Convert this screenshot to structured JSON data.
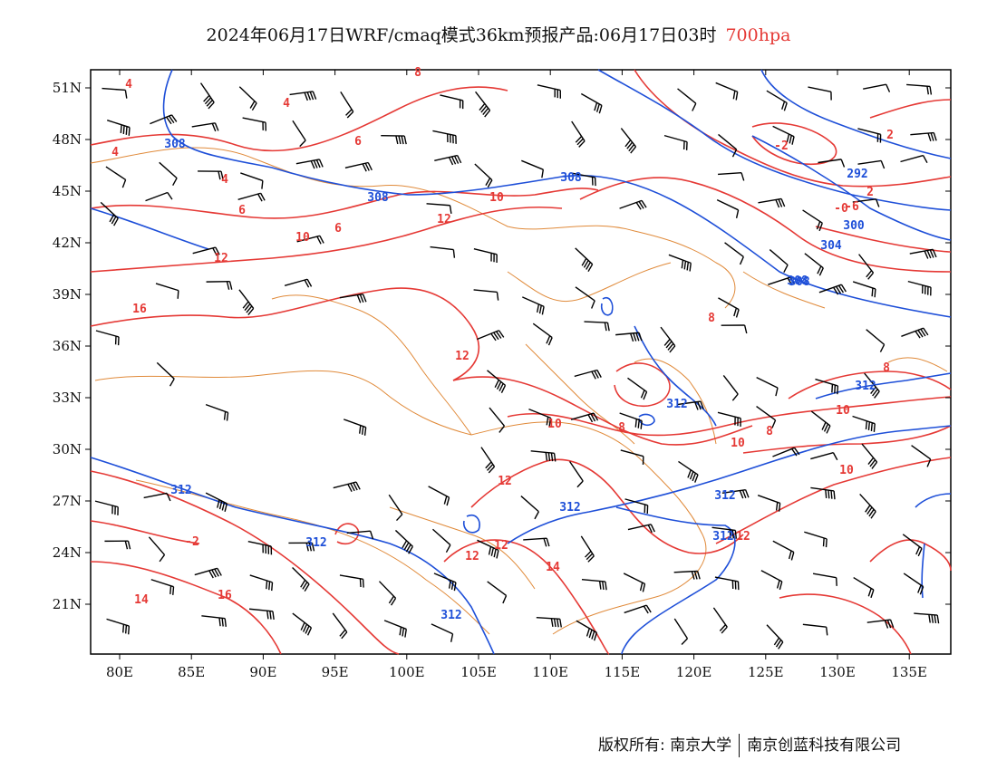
{
  "title": {
    "text": "2024年06月17日WRF/cmaq模式36km预报产品:06月17日03时",
    "level": "700hpa"
  },
  "axes": {
    "lat_labels": [
      "51N",
      "48N",
      "45N",
      "42N",
      "39N",
      "36N",
      "33N",
      "30N",
      "27N",
      "24N",
      "21N"
    ],
    "lon_labels": [
      "80E",
      "85E",
      "90E",
      "95E",
      "100E",
      "105E",
      "110E",
      "115E",
      "120E",
      "125E",
      "130E",
      "135E"
    ]
  },
  "contours": {
    "temperature_labels": [
      "4",
      "4",
      "4",
      "4",
      "6",
      "6",
      "6",
      "8",
      "8",
      "8",
      "8",
      "10",
      "10",
      "10",
      "10",
      "10",
      "12",
      "12",
      "12",
      "12",
      "12",
      "12",
      "12",
      "14",
      "14",
      "16",
      "16",
      "-2",
      "2",
      "-2",
      "-0",
      "2",
      "-6",
      "8",
      "10"
    ],
    "height_labels": [
      "308",
      "308",
      "308",
      "308",
      "292",
      "300",
      "304",
      "308",
      "312",
      "312",
      "312",
      "312",
      "312",
      "312",
      "312",
      "312"
    ]
  },
  "colors": {
    "temperature": "#e53935",
    "geopotential_height": "#1e4fd8",
    "boundaries": "#e08a3a",
    "wind_barbs": "#000000"
  },
  "footer": {
    "left": "版权所有: 南京大学",
    "right": "南京创蓝科技有限公司"
  }
}
